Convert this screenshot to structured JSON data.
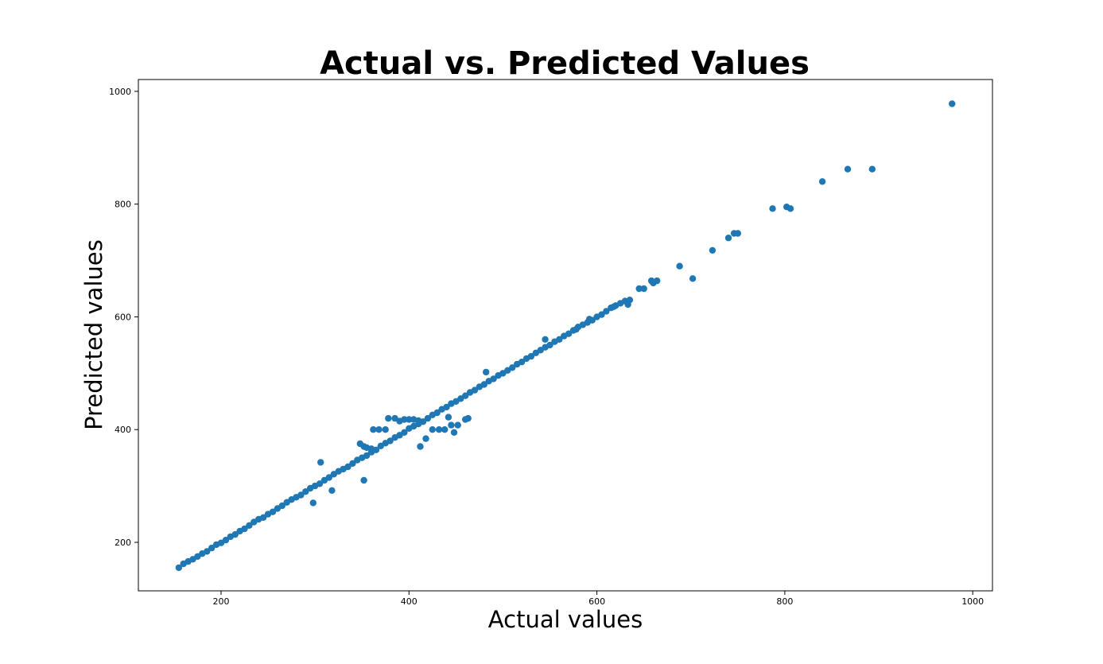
{
  "chart_data": {
    "type": "scatter",
    "title": "Actual vs. Predicted Values",
    "xlabel": "Actual values",
    "ylabel": "Predicted values",
    "xlim": [
      112,
      1021
    ],
    "ylim": [
      114,
      1021
    ],
    "xticks": [
      200,
      400,
      600,
      800,
      1000
    ],
    "yticks": [
      200,
      400,
      600,
      800,
      1000
    ],
    "grid": false,
    "marker_color": "#1f77b4",
    "series": [
      {
        "points": [
          [
            155,
            155
          ],
          [
            160,
            162
          ],
          [
            165,
            166
          ],
          [
            170,
            170
          ],
          [
            175,
            175
          ],
          [
            180,
            180
          ],
          [
            185,
            184
          ],
          [
            190,
            190
          ],
          [
            195,
            196
          ],
          [
            200,
            199
          ],
          [
            205,
            204
          ],
          [
            210,
            210
          ],
          [
            215,
            214
          ],
          [
            220,
            220
          ],
          [
            225,
            224
          ],
          [
            230,
            230
          ],
          [
            235,
            236
          ],
          [
            240,
            241
          ],
          [
            245,
            244
          ],
          [
            250,
            250
          ],
          [
            255,
            254
          ],
          [
            260,
            260
          ],
          [
            265,
            265
          ],
          [
            270,
            271
          ],
          [
            275,
            276
          ],
          [
            280,
            280
          ],
          [
            285,
            284
          ],
          [
            290,
            290
          ],
          [
            295,
            296
          ],
          [
            300,
            300
          ],
          [
            305,
            304
          ],
          [
            310,
            310
          ],
          [
            315,
            315
          ],
          [
            320,
            321
          ],
          [
            325,
            326
          ],
          [
            330,
            330
          ],
          [
            335,
            334
          ],
          [
            340,
            340
          ],
          [
            345,
            346
          ],
          [
            350,
            350
          ],
          [
            355,
            354
          ],
          [
            360,
            360
          ],
          [
            365,
            364
          ],
          [
            370,
            371
          ],
          [
            375,
            376
          ],
          [
            380,
            380
          ],
          [
            385,
            386
          ],
          [
            390,
            390
          ],
          [
            395,
            395
          ],
          [
            400,
            402
          ],
          [
            405,
            406
          ],
          [
            410,
            410
          ],
          [
            415,
            414
          ],
          [
            420,
            420
          ],
          [
            425,
            426
          ],
          [
            430,
            430
          ],
          [
            435,
            436
          ],
          [
            440,
            440
          ],
          [
            445,
            446
          ],
          [
            450,
            450
          ],
          [
            455,
            455
          ],
          [
            460,
            460
          ],
          [
            465,
            466
          ],
          [
            470,
            470
          ],
          [
            475,
            476
          ],
          [
            480,
            480
          ],
          [
            485,
            486
          ],
          [
            490,
            490
          ],
          [
            495,
            496
          ],
          [
            500,
            500
          ],
          [
            505,
            505
          ],
          [
            510,
            510
          ],
          [
            515,
            516
          ],
          [
            520,
            520
          ],
          [
            525,
            526
          ],
          [
            530,
            530
          ],
          [
            535,
            536
          ],
          [
            540,
            541
          ],
          [
            545,
            546
          ],
          [
            550,
            550
          ],
          [
            555,
            556
          ],
          [
            560,
            560
          ],
          [
            565,
            566
          ],
          [
            570,
            570
          ],
          [
            575,
            576
          ],
          [
            580,
            582
          ],
          [
            585,
            586
          ],
          [
            590,
            590
          ],
          [
            595,
            594
          ],
          [
            600,
            600
          ],
          [
            605,
            604
          ],
          [
            610,
            610
          ],
          [
            615,
            616
          ],
          [
            620,
            620
          ],
          [
            625,
            624
          ],
          [
            630,
            628
          ],
          [
            635,
            630
          ],
          [
            368,
            400
          ],
          [
            362,
            400
          ],
          [
            375,
            400
          ],
          [
            378,
            420
          ],
          [
            385,
            420
          ],
          [
            390,
            415
          ],
          [
            395,
            418
          ],
          [
            400,
            418
          ],
          [
            405,
            418
          ],
          [
            410,
            416
          ],
          [
            348,
            375
          ],
          [
            352,
            370
          ],
          [
            355,
            368
          ],
          [
            360,
            366
          ],
          [
            306,
            342
          ],
          [
            298,
            270
          ],
          [
            318,
            292
          ],
          [
            352,
            310
          ],
          [
            412,
            370
          ],
          [
            418,
            384
          ],
          [
            425,
            400
          ],
          [
            432,
            400
          ],
          [
            438,
            400
          ],
          [
            448,
            395
          ],
          [
            445,
            408
          ],
          [
            452,
            408
          ],
          [
            442,
            422
          ],
          [
            460,
            418
          ],
          [
            463,
            420
          ],
          [
            482,
            502
          ],
          [
            545,
            560
          ],
          [
            578,
            578
          ],
          [
            592,
            596
          ],
          [
            618,
            618
          ],
          [
            633,
            622
          ],
          [
            645,
            650
          ],
          [
            650,
            650
          ],
          [
            658,
            664
          ],
          [
            664,
            664
          ],
          [
            660,
            660
          ],
          [
            688,
            690
          ],
          [
            702,
            668
          ],
          [
            723,
            718
          ],
          [
            740,
            740
          ],
          [
            746,
            748
          ],
          [
            750,
            748
          ],
          [
            787,
            792
          ],
          [
            802,
            795
          ],
          [
            806,
            792
          ],
          [
            840,
            840
          ],
          [
            867,
            862
          ],
          [
            893,
            862
          ],
          [
            978,
            978
          ]
        ]
      }
    ]
  }
}
